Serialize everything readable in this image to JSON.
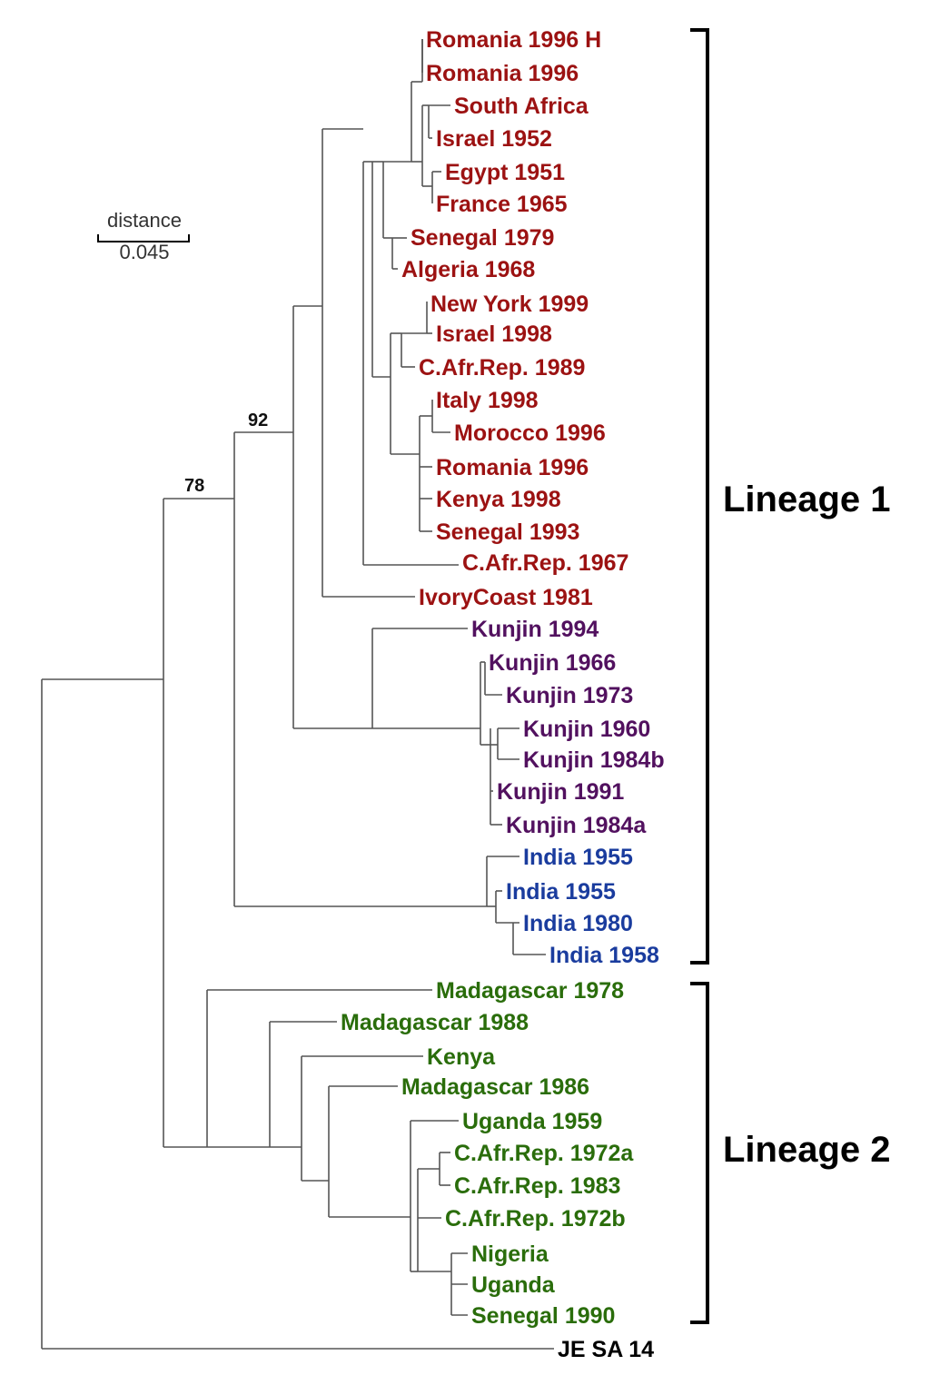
{
  "colors": {
    "europe_africa": "#9c1212",
    "kunjin": "#52115f",
    "india": "#1a3c9e",
    "lineage2": "#2a6d0b",
    "outgroup": "#000000",
    "branch": "#555555"
  },
  "scale_bar": {
    "label": "distance",
    "value": "0.045"
  },
  "support_values": {
    "lineage1_node": "92",
    "ingroup_node": "78"
  },
  "brackets": {
    "lineage1": "Lineage 1",
    "lineage2": "Lineage 2"
  },
  "leaves": [
    {
      "label": "Romania 1996 H",
      "group": "europe_africa"
    },
    {
      "label": "Romania 1996",
      "group": "europe_africa"
    },
    {
      "label": "South Africa",
      "group": "europe_africa"
    },
    {
      "label": "Israel 1952",
      "group": "europe_africa"
    },
    {
      "label": "Egypt 1951",
      "group": "europe_africa"
    },
    {
      "label": "France 1965",
      "group": "europe_africa"
    },
    {
      "label": "Senegal 1979",
      "group": "europe_africa"
    },
    {
      "label": "Algeria 1968",
      "group": "europe_africa"
    },
    {
      "label": "New York 1999",
      "group": "europe_africa",
      "emphasis": true
    },
    {
      "label": "Israel 1998",
      "group": "europe_africa"
    },
    {
      "label": "C.Afr.Rep. 1989",
      "group": "europe_africa"
    },
    {
      "label": "Italy 1998",
      "group": "europe_africa"
    },
    {
      "label": "Morocco 1996",
      "group": "europe_africa"
    },
    {
      "label": "Romania 1996",
      "group": "europe_africa"
    },
    {
      "label": "Kenya 1998",
      "group": "europe_africa"
    },
    {
      "label": "Senegal 1993",
      "group": "europe_africa"
    },
    {
      "label": "C.Afr.Rep. 1967",
      "group": "europe_africa"
    },
    {
      "label": "IvoryCoast 1981",
      "group": "europe_africa"
    },
    {
      "label": "Kunjin 1994",
      "group": "kunjin"
    },
    {
      "label": "Kunjin 1966",
      "group": "kunjin"
    },
    {
      "label": "Kunjin 1973",
      "group": "kunjin"
    },
    {
      "label": "Kunjin 1960",
      "group": "kunjin"
    },
    {
      "label": "Kunjin 1984b",
      "group": "kunjin"
    },
    {
      "label": "Kunjin 1991",
      "group": "kunjin"
    },
    {
      "label": "Kunjin 1984a",
      "group": "kunjin"
    },
    {
      "label": "India 1955",
      "group": "india"
    },
    {
      "label": "India 1955",
      "group": "india"
    },
    {
      "label": "India 1980",
      "group": "india"
    },
    {
      "label": "India 1958",
      "group": "india"
    },
    {
      "label": "Madagascar 1978",
      "group": "lineage2"
    },
    {
      "label": "Madagascar 1988",
      "group": "lineage2"
    },
    {
      "label": "Kenya",
      "group": "lineage2"
    },
    {
      "label": "Madagascar 1986",
      "group": "lineage2"
    },
    {
      "label": "Uganda 1959",
      "group": "lineage2"
    },
    {
      "label": "C.Afr.Rep. 1972a",
      "group": "lineage2"
    },
    {
      "label": "C.Afr.Rep. 1983",
      "group": "lineage2"
    },
    {
      "label": "C.Afr.Rep. 1972b",
      "group": "lineage2"
    },
    {
      "label": "Nigeria",
      "group": "lineage2"
    },
    {
      "label": "Uganda",
      "group": "lineage2"
    },
    {
      "label": "Senegal 1990",
      "group": "lineage2"
    },
    {
      "label": "JE SA 14",
      "group": "outgroup"
    }
  ]
}
